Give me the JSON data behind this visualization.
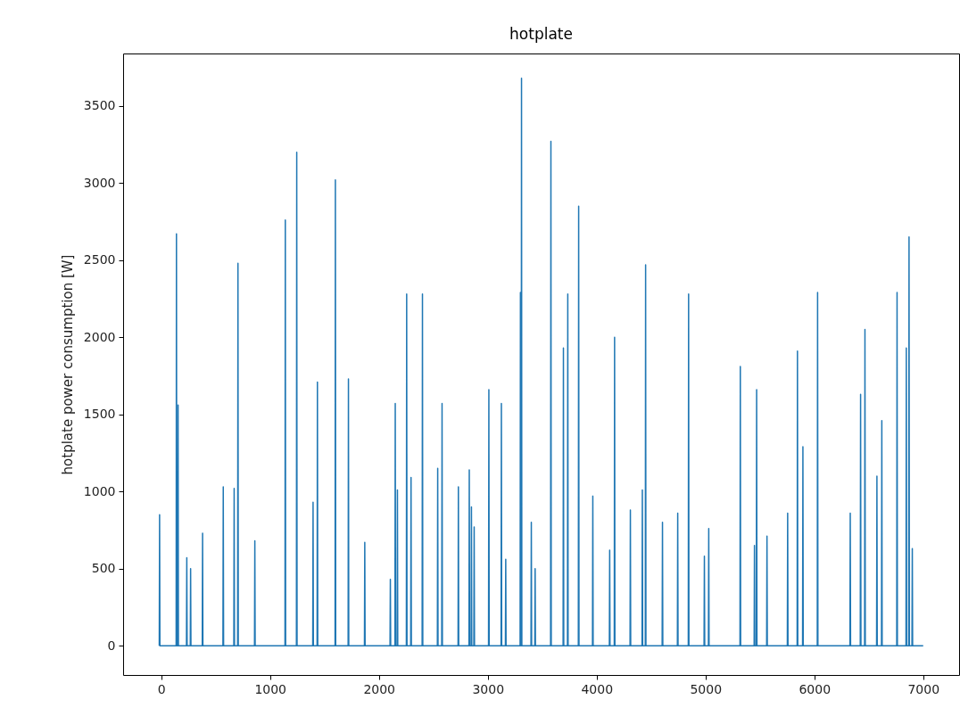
{
  "chart_data": {
    "type": "line",
    "title": "hotplate",
    "ylabel": "hotplate power consumption [W]",
    "xlim": [
      -350,
      7330
    ],
    "xticks": [
      0,
      1000,
      2000,
      3000,
      4000,
      5000,
      6000,
      7000
    ],
    "ylim": [
      -190,
      3840
    ],
    "yticks": [
      0,
      500,
      1000,
      1500,
      2000,
      2500,
      3000,
      3500
    ],
    "grid": false,
    "series": [
      {
        "color": "#1f77b4",
        "x": [
          -18,
          -15,
          -12,
          137,
          140,
          143,
          152,
          155,
          158,
          232,
          235,
          238,
          267,
          270,
          273,
          377,
          380,
          383,
          567,
          570,
          573,
          667,
          670,
          673,
          702,
          705,
          708,
          857,
          860,
          863,
          1137,
          1140,
          1143,
          1242,
          1245,
          1248,
          1392,
          1395,
          1398,
          1432,
          1435,
          1438,
          1597,
          1600,
          1603,
          1717,
          1720,
          1723,
          1867,
          1870,
          1873,
          2102,
          2105,
          2108,
          2147,
          2150,
          2153,
          2167,
          2170,
          2173,
          2252,
          2255,
          2258,
          2292,
          2295,
          2298,
          2397,
          2400,
          2403,
          2537,
          2540,
          2543,
          2577,
          2580,
          2583,
          2727,
          2730,
          2733,
          2827,
          2830,
          2833,
          2847,
          2850,
          2853,
          2872,
          2875,
          2878,
          3007,
          3010,
          3013,
          3122,
          3125,
          3128,
          3162,
          3165,
          3168,
          3297,
          3300,
          3303,
          3307,
          3310,
          3313,
          3397,
          3400,
          3403,
          3432,
          3435,
          3438,
          3577,
          3580,
          3583,
          3692,
          3695,
          3698,
          3732,
          3735,
          3738,
          3832,
          3835,
          3838,
          3962,
          3965,
          3968,
          4117,
          4120,
          4123,
          4162,
          4165,
          4168,
          4307,
          4310,
          4313,
          4417,
          4420,
          4423,
          4447,
          4450,
          4453,
          4602,
          4605,
          4608,
          4742,
          4745,
          4748,
          4842,
          4845,
          4848,
          4987,
          4990,
          4993,
          5027,
          5030,
          5033,
          5317,
          5320,
          5323,
          5447,
          5450,
          5453,
          5467,
          5470,
          5473,
          5562,
          5565,
          5568,
          5752,
          5755,
          5758,
          5842,
          5845,
          5848,
          5892,
          5895,
          5898,
          6027,
          6030,
          6033,
          6327,
          6330,
          6333,
          6422,
          6425,
          6428,
          6462,
          6465,
          6468,
          6572,
          6575,
          6578,
          6617,
          6620,
          6623,
          6757,
          6760,
          6763,
          6842,
          6845,
          6848,
          6867,
          6870,
          6873,
          6897,
          6900,
          6903,
          7000
        ],
        "values": [
          0,
          850,
          0,
          0,
          2670,
          0,
          0,
          1560,
          0,
          0,
          570,
          0,
          0,
          500,
          0,
          0,
          730,
          0,
          0,
          1030,
          0,
          0,
          1020,
          0,
          0,
          2480,
          0,
          0,
          680,
          0,
          0,
          2760,
          0,
          0,
          3200,
          0,
          0,
          930,
          0,
          0,
          1710,
          0,
          0,
          3020,
          0,
          0,
          1730,
          0,
          0,
          670,
          0,
          0,
          430,
          0,
          0,
          1570,
          0,
          0,
          1010,
          0,
          0,
          2280,
          0,
          0,
          1090,
          0,
          0,
          2280,
          0,
          0,
          1150,
          0,
          0,
          1570,
          0,
          0,
          1030,
          0,
          0,
          1140,
          0,
          0,
          900,
          0,
          0,
          770,
          0,
          0,
          1660,
          0,
          0,
          1570,
          0,
          0,
          560,
          0,
          0,
          2290,
          0,
          0,
          3680,
          0,
          0,
          800,
          0,
          0,
          500,
          0,
          0,
          3270,
          0,
          0,
          1930,
          0,
          0,
          2280,
          0,
          0,
          2850,
          0,
          0,
          970,
          0,
          0,
          620,
          0,
          0,
          2000,
          0,
          0,
          880,
          0,
          0,
          1010,
          0,
          0,
          2470,
          0,
          0,
          800,
          0,
          0,
          860,
          0,
          0,
          2280,
          0,
          0,
          580,
          0,
          0,
          760,
          0,
          0,
          1810,
          0,
          0,
          650,
          0,
          0,
          1660,
          0,
          0,
          710,
          0,
          0,
          860,
          0,
          0,
          1910,
          0,
          0,
          1290,
          0,
          0,
          2290,
          0,
          0,
          860,
          0,
          0,
          1630,
          0,
          0,
          2050,
          0,
          0,
          1100,
          0,
          0,
          1460,
          0,
          0,
          2290,
          0,
          0,
          1930,
          0,
          0,
          2650,
          0,
          0,
          630,
          0,
          0
        ]
      }
    ]
  }
}
